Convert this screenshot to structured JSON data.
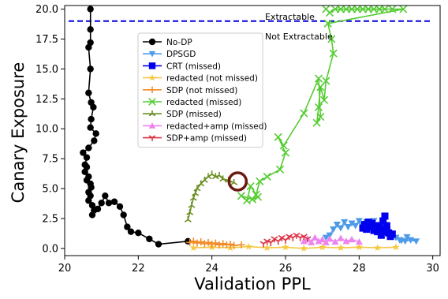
{
  "chart_data": {
    "type": "scatter",
    "title": "",
    "xlabel": "Validation PPL",
    "ylabel": "Canary Exposure",
    "xlim": [
      20,
      30.2
    ],
    "ylim": [
      -0.6,
      20.3
    ],
    "xticks": [
      20,
      22,
      24,
      26,
      28,
      30
    ],
    "yticks": [
      0.0,
      2.5,
      5.0,
      7.5,
      10.0,
      12.5,
      15.0,
      17.5,
      20.0
    ],
    "xtick_labels": [
      "20",
      "22",
      "24",
      "26",
      "28",
      "30"
    ],
    "ytick_labels": [
      "0.0",
      "2.5",
      "5.0",
      "7.5",
      "10.0",
      "12.5",
      "15.0",
      "17.5",
      "20.0"
    ],
    "grid": false,
    "legend_position": "upper-left-center",
    "threshold": {
      "y": 19,
      "color": "#0000dd",
      "label_above": "Extractable",
      "label_below": "Not Extractable"
    },
    "highlight_circle": {
      "x": 24.7,
      "y": 5.6,
      "color": "#6b1a12"
    },
    "series": [
      {
        "name": "No-DP",
        "color": "#000000",
        "marker": "circle",
        "line": true,
        "points": [
          [
            20.7,
            20.0
          ],
          [
            20.7,
            18.3
          ],
          [
            20.7,
            17.2
          ],
          [
            20.65,
            16.8
          ],
          [
            20.7,
            15.0
          ],
          [
            20.65,
            13.0
          ],
          [
            20.72,
            12.2
          ],
          [
            20.78,
            11.8
          ],
          [
            20.72,
            10.8
          ],
          [
            20.7,
            10.1
          ],
          [
            20.85,
            9.6
          ],
          [
            20.8,
            9.0
          ],
          [
            20.65,
            8.4
          ],
          [
            20.5,
            8.0
          ],
          [
            20.6,
            7.6
          ],
          [
            20.55,
            7.0
          ],
          [
            20.6,
            6.8
          ],
          [
            20.55,
            6.4
          ],
          [
            20.65,
            6.0
          ],
          [
            20.6,
            5.7
          ],
          [
            20.7,
            5.4
          ],
          [
            20.72,
            5.1
          ],
          [
            20.65,
            4.7
          ],
          [
            20.7,
            4.4
          ],
          [
            20.65,
            4.0
          ],
          [
            20.75,
            3.6
          ],
          [
            20.8,
            3.2
          ],
          [
            20.75,
            2.8
          ],
          [
            20.9,
            3.3
          ],
          [
            21.0,
            3.8
          ],
          [
            21.1,
            4.4
          ],
          [
            21.2,
            3.8
          ],
          [
            21.35,
            3.9
          ],
          [
            21.5,
            3.5
          ],
          [
            21.6,
            2.8
          ],
          [
            21.7,
            1.8
          ],
          [
            21.8,
            1.4
          ],
          [
            22.0,
            1.3
          ],
          [
            22.3,
            0.8
          ],
          [
            22.55,
            0.35
          ],
          [
            23.35,
            0.6
          ]
        ]
      },
      {
        "name": "DPSGD",
        "color": "#4d9be8",
        "marker": "triangle-down",
        "line": true,
        "points": [
          [
            27.1,
            0.9
          ],
          [
            27.2,
            1.1
          ],
          [
            27.3,
            1.6
          ],
          [
            27.4,
            2.0
          ],
          [
            27.5,
            1.7
          ],
          [
            27.6,
            2.2
          ],
          [
            27.7,
            1.8
          ],
          [
            27.8,
            2.1
          ],
          [
            27.9,
            1.9
          ],
          [
            28.0,
            2.3
          ],
          [
            28.1,
            1.8
          ],
          [
            28.2,
            2.2
          ],
          [
            28.3,
            1.9
          ],
          [
            28.4,
            2.3
          ],
          [
            28.5,
            1.7
          ],
          [
            28.6,
            2.0
          ],
          [
            28.7,
            1.5
          ],
          [
            28.8,
            1.2
          ],
          [
            28.9,
            1.0
          ],
          [
            29.0,
            0.9
          ],
          [
            29.1,
            0.7
          ],
          [
            29.15,
            0.65
          ],
          [
            29.25,
            0.6
          ],
          [
            29.4,
            0.7
          ],
          [
            29.55,
            0.6
          ],
          [
            29.3,
            0.95
          ]
        ]
      },
      {
        "name": "CRT (missed)",
        "color": "#0000ee",
        "marker": "square",
        "line": true,
        "points": [
          [
            28.1,
            1.7
          ],
          [
            28.15,
            2.0
          ],
          [
            28.2,
            1.6
          ],
          [
            28.25,
            2.2
          ],
          [
            28.3,
            1.8
          ],
          [
            28.35,
            2.1
          ],
          [
            28.4,
            1.5
          ],
          [
            28.45,
            1.9
          ],
          [
            28.5,
            1.4
          ],
          [
            28.55,
            1.8
          ],
          [
            28.6,
            1.6
          ],
          [
            28.65,
            2.3
          ],
          [
            28.7,
            2.7
          ],
          [
            28.75,
            1.9
          ],
          [
            28.7,
            1.4
          ],
          [
            28.6,
            1.1
          ],
          [
            28.8,
            1.3
          ],
          [
            28.85,
            1.0
          ],
          [
            28.9,
            1.2
          ],
          [
            28.75,
            1.6
          ]
        ]
      },
      {
        "name": "redacted (not missed)",
        "color": "#f5c842",
        "marker": "star",
        "line": true,
        "points": [
          [
            23.5,
            0.05
          ],
          [
            24.0,
            0.1
          ],
          [
            24.5,
            0.05
          ],
          [
            25.0,
            0.15
          ],
          [
            25.5,
            0.05
          ],
          [
            26.0,
            0.1
          ],
          [
            26.5,
            0.0
          ],
          [
            27.0,
            0.1
          ],
          [
            27.5,
            0.05
          ],
          [
            28.0,
            0.1
          ],
          [
            28.5,
            0.05
          ],
          [
            29.0,
            0.1
          ]
        ]
      },
      {
        "name": "SDP (not missed)",
        "color": "#f28c28",
        "marker": "plus",
        "line": true,
        "points": [
          [
            23.4,
            0.5
          ],
          [
            23.5,
            0.6
          ],
          [
            23.6,
            0.45
          ],
          [
            23.7,
            0.55
          ],
          [
            23.8,
            0.4
          ],
          [
            23.9,
            0.5
          ],
          [
            24.0,
            0.35
          ],
          [
            24.1,
            0.45
          ],
          [
            24.2,
            0.3
          ],
          [
            24.3,
            0.4
          ],
          [
            24.4,
            0.3
          ],
          [
            24.5,
            0.35
          ],
          [
            24.6,
            0.25
          ],
          [
            24.8,
            0.3
          ]
        ]
      },
      {
        "name": "redacted (missed)",
        "color": "#55cc33",
        "marker": "x",
        "line": true,
        "points": [
          [
            27.1,
            20.0
          ],
          [
            27.2,
            19.7
          ],
          [
            27.35,
            20.0
          ],
          [
            27.5,
            20.0
          ],
          [
            27.65,
            20.0
          ],
          [
            27.8,
            20.0
          ],
          [
            27.95,
            20.0
          ],
          [
            28.1,
            20.0
          ],
          [
            28.25,
            20.0
          ],
          [
            28.4,
            20.0
          ],
          [
            28.55,
            20.0
          ],
          [
            28.7,
            20.0
          ],
          [
            28.9,
            20.0
          ],
          [
            29.2,
            20.0
          ],
          [
            27.15,
            18.8
          ],
          [
            27.25,
            17.5
          ],
          [
            27.3,
            16.3
          ],
          [
            27.1,
            14.0
          ],
          [
            27.05,
            12.4
          ],
          [
            26.95,
            13.5
          ],
          [
            26.9,
            11.8
          ],
          [
            26.85,
            10.5
          ],
          [
            26.95,
            11.0
          ],
          [
            26.9,
            14.2
          ],
          [
            26.5,
            11.3
          ],
          [
            25.95,
            8.6
          ],
          [
            25.8,
            9.3
          ],
          [
            26.0,
            8.0
          ],
          [
            25.85,
            6.6
          ],
          [
            25.5,
            6.0
          ],
          [
            25.3,
            5.6
          ],
          [
            25.2,
            4.5
          ],
          [
            25.05,
            5.2
          ],
          [
            24.95,
            4.0
          ],
          [
            24.8,
            4.4
          ],
          [
            25.1,
            4.1
          ],
          [
            25.25,
            4.3
          ]
        ]
      },
      {
        "name": "SDP (missed)",
        "color": "#6b8e23",
        "marker": "tri",
        "line": true,
        "points": [
          [
            23.35,
            2.4
          ],
          [
            23.4,
            3.0
          ],
          [
            23.45,
            3.6
          ],
          [
            23.5,
            4.2
          ],
          [
            23.55,
            4.6
          ],
          [
            23.6,
            5.0
          ],
          [
            23.7,
            5.4
          ],
          [
            23.8,
            5.7
          ],
          [
            23.9,
            6.0
          ],
          [
            24.0,
            6.2
          ],
          [
            24.1,
            6.0
          ],
          [
            24.2,
            6.1
          ],
          [
            24.3,
            5.8
          ],
          [
            24.45,
            5.7
          ],
          [
            24.6,
            5.5
          ]
        ]
      },
      {
        "name": "redacted+amp (missed)",
        "color": "#ee82ee",
        "marker": "triangle-up",
        "line": true,
        "points": [
          [
            26.5,
            0.6
          ],
          [
            26.6,
            0.8
          ],
          [
            26.7,
            0.5
          ],
          [
            26.8,
            0.9
          ],
          [
            26.9,
            0.6
          ],
          [
            27.0,
            0.75
          ],
          [
            27.1,
            0.5
          ],
          [
            27.2,
            0.8
          ],
          [
            27.35,
            0.55
          ],
          [
            27.5,
            0.85
          ],
          [
            27.65,
            0.6
          ],
          [
            27.8,
            0.75
          ],
          [
            28.0,
            0.55
          ]
        ]
      },
      {
        "name": "SDP+amp (missed)",
        "color": "#dd3344",
        "marker": "tri-down",
        "line": true,
        "points": [
          [
            25.4,
            0.4
          ],
          [
            25.5,
            0.6
          ],
          [
            25.6,
            0.5
          ],
          [
            25.7,
            0.8
          ],
          [
            25.8,
            0.6
          ],
          [
            25.9,
            0.9
          ],
          [
            26.0,
            0.7
          ],
          [
            26.1,
            1.0
          ],
          [
            26.2,
            0.9
          ],
          [
            26.3,
            1.1
          ],
          [
            26.4,
            0.9
          ],
          [
            26.5,
            1.0
          ],
          [
            26.6,
            0.8
          ]
        ]
      }
    ]
  }
}
